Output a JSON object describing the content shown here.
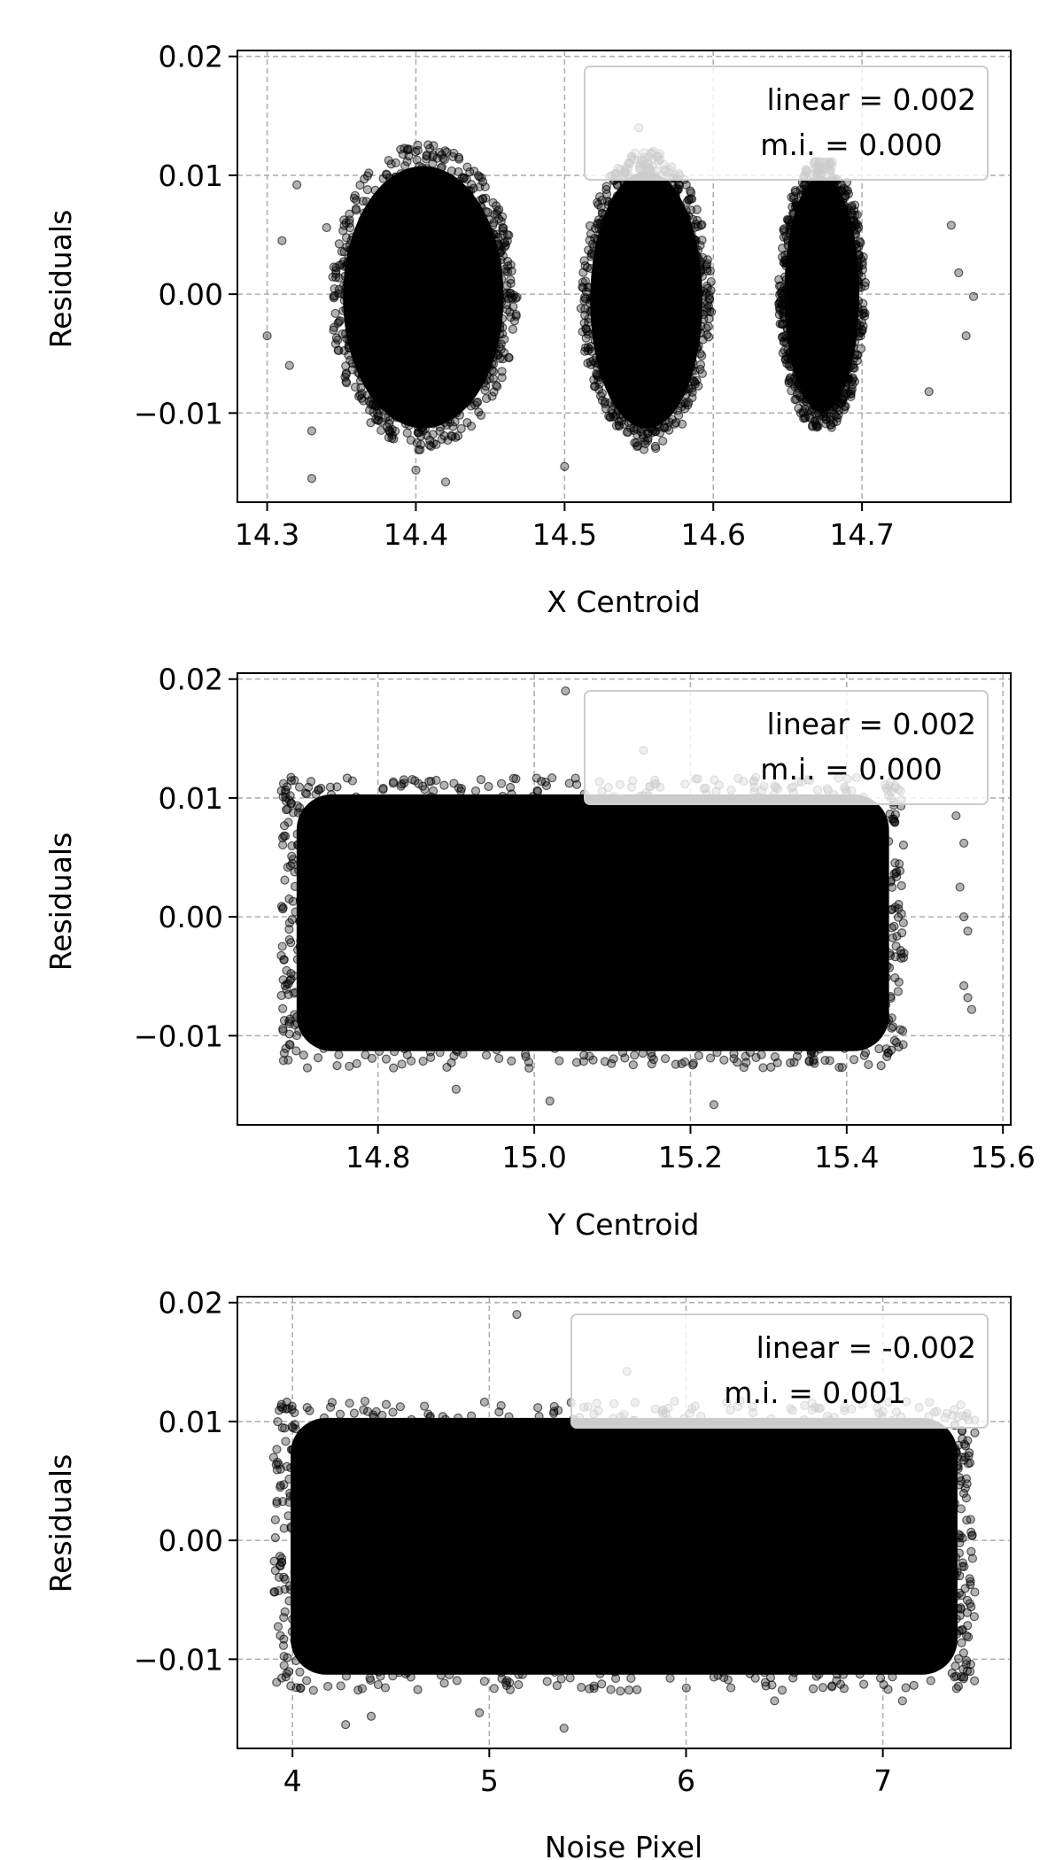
{
  "chart_data": [
    {
      "type": "scatter",
      "title": "",
      "xlabel": "X Centroid",
      "ylabel": "Residuals",
      "xlim": [
        14.28,
        14.8
      ],
      "ylim": [
        -0.0175,
        0.0205
      ],
      "xticks": [
        14.3,
        14.4,
        14.5,
        14.6,
        14.7
      ],
      "xtick_labels": [
        "14.3",
        "14.4",
        "14.5",
        "14.6",
        "14.7"
      ],
      "yticks": [
        -0.01,
        0.0,
        0.01,
        0.02
      ],
      "ytick_labels": [
        "−0.01",
        "0.00",
        "0.01",
        "0.02"
      ],
      "grid": true,
      "grid_style": "dashed",
      "legend_position": "top-right",
      "annotation": [
        "linear = 0.002",
        "m.i. = 0.000"
      ],
      "marker_color": "#000000",
      "clusters": [
        {
          "x_center": 14.405,
          "x_half_width": 0.06,
          "y_range": [
            -0.0125,
            0.012
          ]
        },
        {
          "x_center": 14.555,
          "x_half_width": 0.042,
          "y_range": [
            -0.0125,
            0.0115
          ]
        },
        {
          "x_center": 14.673,
          "x_half_width": 0.028,
          "y_range": [
            -0.011,
            0.011
          ]
        }
      ],
      "outliers": [
        [
          14.3,
          -0.0035
        ],
        [
          14.31,
          0.0045
        ],
        [
          14.315,
          -0.006
        ],
        [
          14.32,
          0.0092
        ],
        [
          14.33,
          -0.0155
        ],
        [
          14.33,
          -0.0115
        ],
        [
          14.34,
          0.0056
        ],
        [
          14.4,
          -0.0148
        ],
        [
          14.42,
          -0.0158
        ],
        [
          14.5,
          -0.0145
        ],
        [
          14.55,
          0.014
        ],
        [
          14.76,
          0.0058
        ],
        [
          14.77,
          -0.0035
        ],
        [
          14.745,
          -0.0082
        ],
        [
          14.765,
          0.0018
        ],
        [
          14.775,
          -0.0002
        ]
      ]
    },
    {
      "type": "scatter",
      "title": "",
      "xlabel": "Y Centroid",
      "ylabel": "Residuals",
      "xlim": [
        14.62,
        15.61
      ],
      "ylim": [
        -0.0175,
        0.0205
      ],
      "xticks": [
        14.8,
        15.0,
        15.2,
        15.4,
        15.6
      ],
      "xtick_labels": [
        "14.8",
        "15.0",
        "15.2",
        "15.4",
        "15.6"
      ],
      "yticks": [
        -0.01,
        0.0,
        0.01,
        0.02
      ],
      "ytick_labels": [
        "−0.01",
        "0.00",
        "0.01",
        "0.02"
      ],
      "grid": true,
      "grid_style": "dashed",
      "legend_position": "top-right",
      "annotation": [
        "linear = 0.002",
        "m.i. = 0.000"
      ],
      "marker_color": "#000000",
      "clusters": [
        {
          "x_range": [
            14.68,
            15.47
          ],
          "y_range": [
            -0.0125,
            0.0115
          ]
        }
      ],
      "outliers": [
        [
          15.04,
          0.019
        ],
        [
          15.14,
          0.014
        ],
        [
          14.9,
          -0.0145
        ],
        [
          15.02,
          -0.0155
        ],
        [
          15.23,
          -0.0158
        ],
        [
          15.54,
          0.0085
        ],
        [
          15.55,
          0.0062
        ],
        [
          15.545,
          0.0025
        ],
        [
          15.55,
          0.0
        ],
        [
          15.555,
          -0.0012
        ],
        [
          15.55,
          -0.0058
        ],
        [
          15.555,
          -0.0068
        ],
        [
          15.56,
          -0.0078
        ]
      ]
    },
    {
      "type": "scatter",
      "title": "",
      "xlabel": "Noise Pixel",
      "ylabel": "Residuals",
      "xlim": [
        3.72,
        7.65
      ],
      "ylim": [
        -0.0175,
        0.0205
      ],
      "xticks": [
        4,
        5,
        6,
        7
      ],
      "xtick_labels": [
        "4",
        "5",
        "6",
        "7"
      ],
      "yticks": [
        -0.01,
        0.0,
        0.01,
        0.02
      ],
      "ytick_labels": [
        "−0.01",
        "0.00",
        "0.01",
        "0.02"
      ],
      "grid": true,
      "grid_style": "dashed",
      "legend_position": "top-right",
      "annotation": [
        "linear = -0.002",
        "m.i. = 0.001"
      ],
      "marker_color": "#000000",
      "clusters": [
        {
          "x_range": [
            3.92,
            7.45
          ],
          "y_range": [
            -0.0125,
            0.0115
          ]
        }
      ],
      "outliers": [
        [
          5.14,
          0.019
        ],
        [
          5.7,
          0.0142
        ],
        [
          4.27,
          -0.0155
        ],
        [
          4.4,
          -0.0148
        ],
        [
          4.95,
          -0.0145
        ],
        [
          5.38,
          -0.0158
        ],
        [
          6.45,
          -0.0135
        ],
        [
          7.1,
          -0.0135
        ]
      ]
    }
  ]
}
